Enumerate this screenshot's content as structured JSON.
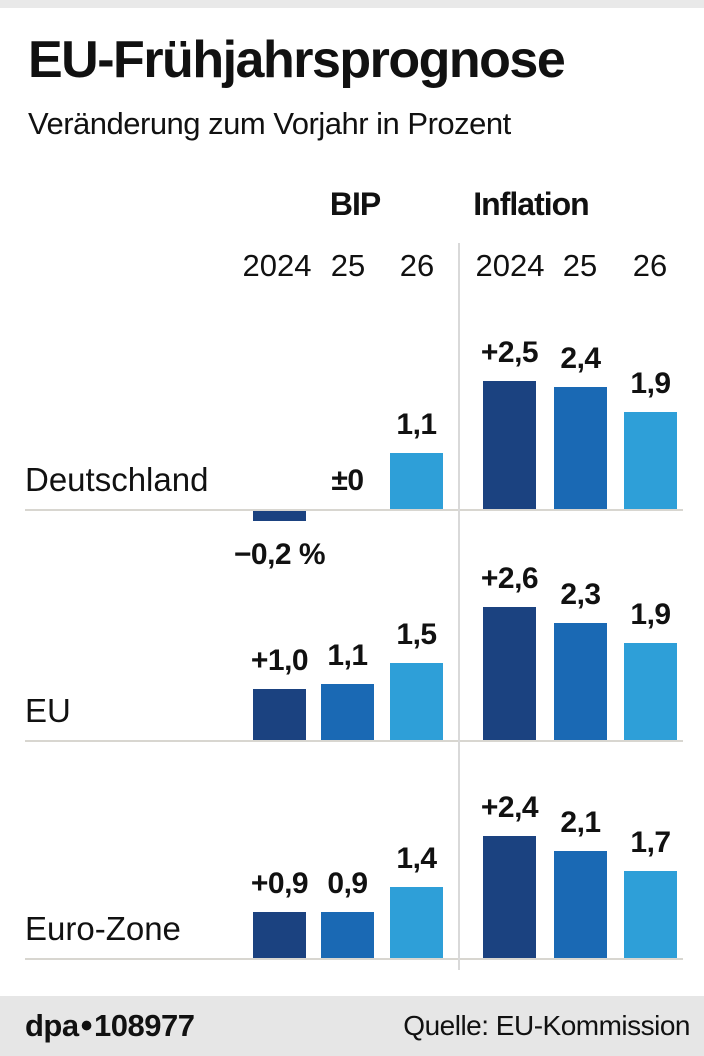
{
  "header": {
    "title": "EU-Frühjahrsprognose",
    "subtitle": "Veränderung zum Vorjahr in Prozent"
  },
  "chart_data": {
    "type": "bar",
    "title": "EU-Frühjahrsprognose",
    "subtitle": "Veränderung zum Vorjahr in Prozent",
    "unit": "percent change vs. previous year",
    "sections": [
      {
        "key": "bip",
        "label": "BIP",
        "years": [
          "2024",
          "25",
          "26"
        ]
      },
      {
        "key": "inflation",
        "label": "Inflation",
        "years": [
          "2024",
          "25",
          "26"
        ]
      }
    ],
    "rows": [
      {
        "label": "Deutschland",
        "bip": {
          "values": [
            -0.2,
            0.0,
            1.1
          ],
          "labels": [
            "−0,2 %",
            "±0",
            "1,1"
          ]
        },
        "inflation": {
          "values": [
            2.5,
            2.4,
            1.9
          ],
          "labels": [
            "+2,5",
            "2,4",
            "1,9"
          ]
        }
      },
      {
        "label": "EU",
        "bip": {
          "values": [
            1.0,
            1.1,
            1.5
          ],
          "labels": [
            "+1,0",
            "1,1",
            "1,5"
          ]
        },
        "inflation": {
          "values": [
            2.6,
            2.3,
            1.9
          ],
          "labels": [
            "+2,6",
            "2,3",
            "1,9"
          ]
        }
      },
      {
        "label": "Euro-Zone",
        "bip": {
          "values": [
            0.9,
            0.9,
            1.4
          ],
          "labels": [
            "+0,9",
            "0,9",
            "1,4"
          ]
        },
        "inflation": {
          "values": [
            2.4,
            2.1,
            1.7
          ],
          "labels": [
            "+2,4",
            "2,1",
            "1,7"
          ]
        }
      }
    ],
    "colors": {
      "y2024": "#1B4280",
      "y25": "#1A69B4",
      "y26": "#2E9FD8"
    },
    "legend_position": "none",
    "grid": "row-baselines-only"
  },
  "footer": {
    "agency": "dpa",
    "separator": "•",
    "number": "108977",
    "source": "Quelle: EU-Kommission"
  }
}
